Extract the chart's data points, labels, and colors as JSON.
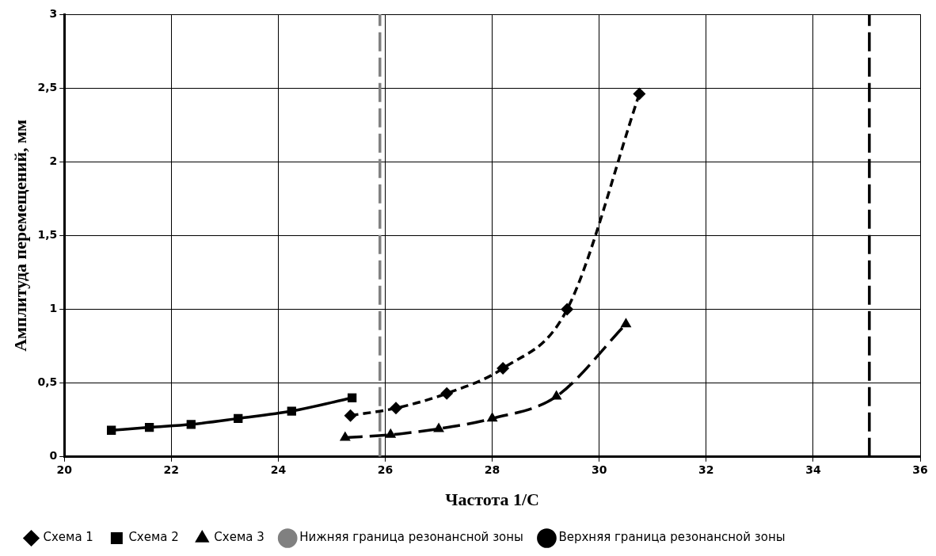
{
  "chart_data": {
    "type": "line",
    "xlabel": "Частота 1/С",
    "ylabel": "Амплитуда перемещений, мм",
    "xlim": [
      20,
      36
    ],
    "xticks": [
      20,
      22,
      24,
      26,
      28,
      30,
      32,
      34,
      36
    ],
    "ylim": [
      0,
      3
    ],
    "yticks": [
      0,
      {
        "value": 0.5,
        "label": "0,5"
      },
      1,
      {
        "value": 1.5,
        "label": "1,5"
      },
      2,
      {
        "value": 2.5,
        "label": "2,5"
      },
      3
    ],
    "grid": true,
    "legend": "bottom",
    "series": [
      {
        "name": "Схема 1",
        "color": "#000000",
        "marker": "diamond",
        "line_style": "dashed",
        "x": [
          25.35,
          26.2,
          27.15,
          28.2,
          29.4,
          30.75
        ],
        "values": [
          0.28,
          0.33,
          0.43,
          0.6,
          1.0,
          2.46
        ]
      },
      {
        "name": "Схема 2",
        "color": "#000000",
        "marker": "square",
        "line_style": "solid",
        "x": [
          20.88,
          21.59,
          22.37,
          23.25,
          24.25,
          25.38
        ],
        "values": [
          0.18,
          0.2,
          0.22,
          0.26,
          0.31,
          0.4
        ]
      },
      {
        "name": "Схема 3",
        "color": "#000000",
        "marker": "triangle",
        "line_style": "dashed",
        "x": [
          25.25,
          26.1,
          27.0,
          28.0,
          29.2,
          30.5
        ],
        "values": [
          0.13,
          0.15,
          0.19,
          0.26,
          0.41,
          0.9
        ]
      }
    ],
    "ref_lines": [
      {
        "axis": "x",
        "value": 25.9,
        "label": "Нижняя граница резонансной зоны",
        "color": "#808080",
        "line_style": "dashed"
      },
      {
        "axis": "x",
        "value": 35.05,
        "label": "Верхняя граница резонансной зоны",
        "color": "#000000",
        "line_style": "dashed"
      }
    ]
  }
}
